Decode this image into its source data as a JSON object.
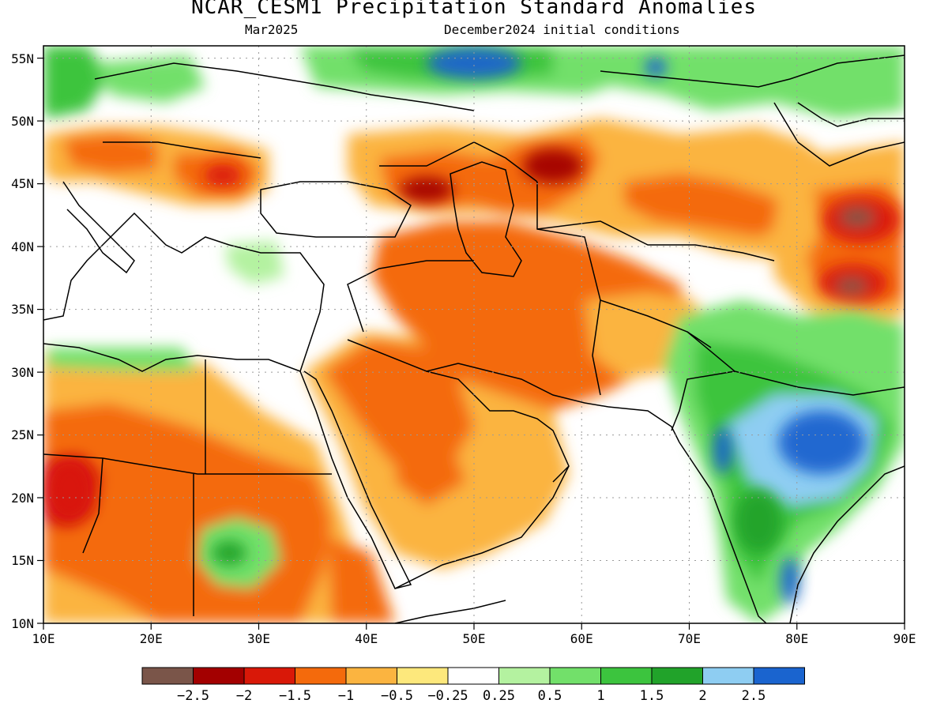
{
  "title": "NCAR_CESM1 Precipitation Standard Anomalies",
  "valid_month": "Mar2025",
  "init_conditions": "December2024 initial conditions",
  "map": {
    "projection": "lat-lon",
    "lon_range": [
      10,
      90
    ],
    "lat_range": [
      10,
      56
    ],
    "grid": "dotted",
    "lon_ticks": [
      "10E",
      "20E",
      "30E",
      "40E",
      "50E",
      "60E",
      "70E",
      "80E",
      "90E"
    ],
    "lat_ticks": [
      "10N",
      "15N",
      "20N",
      "25N",
      "30N",
      "35N",
      "40N",
      "45N",
      "50N",
      "55N"
    ]
  },
  "colorbar": {
    "labels": [
      "-2.5",
      "-2",
      "-1.5",
      "-1",
      "-0.5",
      "-0.25",
      "0.25",
      "0.5",
      "1",
      "1.5",
      "2",
      "2.5"
    ],
    "colors": [
      "#7a5549",
      "#a30000",
      "#d91808",
      "#f46a0c",
      "#fbb440",
      "#fde87c",
      "#ffffff",
      "#b4f2a0",
      "#72e06a",
      "#3cc43e",
      "#21a32a",
      "#8ecdf2",
      "#1a64cf"
    ]
  },
  "anomaly_regions": [
    {
      "name": "north-africa-dry",
      "lon": [
        10,
        43
      ],
      "lat": [
        10,
        31
      ],
      "value": -1.2
    },
    {
      "name": "libya-chad-strong-dry",
      "lon": [
        10,
        16
      ],
      "lat": [
        18,
        25
      ],
      "value": -1.8
    },
    {
      "name": "sudan-wet-pocket",
      "lon": [
        27,
        31
      ],
      "lat": [
        14,
        18
      ],
      "value": 1.5
    },
    {
      "name": "arabia-dry",
      "lon": [
        38,
        57
      ],
      "lat": [
        15,
        33
      ],
      "value": -1.0
    },
    {
      "name": "iran-afghanistan-dry",
      "lon": [
        45,
        70
      ],
      "lat": [
        26,
        41
      ],
      "value": -1.3
    },
    {
      "name": "caucasus-strong-dry",
      "lon": [
        44,
        48
      ],
      "lat": [
        43,
        46
      ],
      "value": -2.1
    },
    {
      "name": "kazakhstan-strong-dry",
      "lon": [
        53,
        60
      ],
      "lat": [
        44,
        48
      ],
      "value": -2.0
    },
    {
      "name": "balkans-dry",
      "lon": [
        24,
        29
      ],
      "lat": [
        44,
        47
      ],
      "value": -1.7
    },
    {
      "name": "tarim-basin-extreme-dry",
      "lon": [
        83,
        90
      ],
      "lat": [
        41,
        44
      ],
      "value": -2.6
    },
    {
      "name": "tibet-extreme-dry",
      "lon": [
        83,
        90
      ],
      "lat": [
        35,
        38
      ],
      "value": -2.6
    },
    {
      "name": "siberia-wet",
      "lon": [
        40,
        55
      ],
      "lat": [
        53,
        56
      ],
      "value": 2.3
    },
    {
      "name": "india-wet",
      "lon": [
        71,
        88
      ],
      "lat": [
        14,
        32
      ],
      "value": 1.5
    },
    {
      "name": "central-india-very-wet",
      "lon": [
        78,
        86
      ],
      "lat": [
        20,
        25
      ],
      "value": 2.6
    }
  ]
}
